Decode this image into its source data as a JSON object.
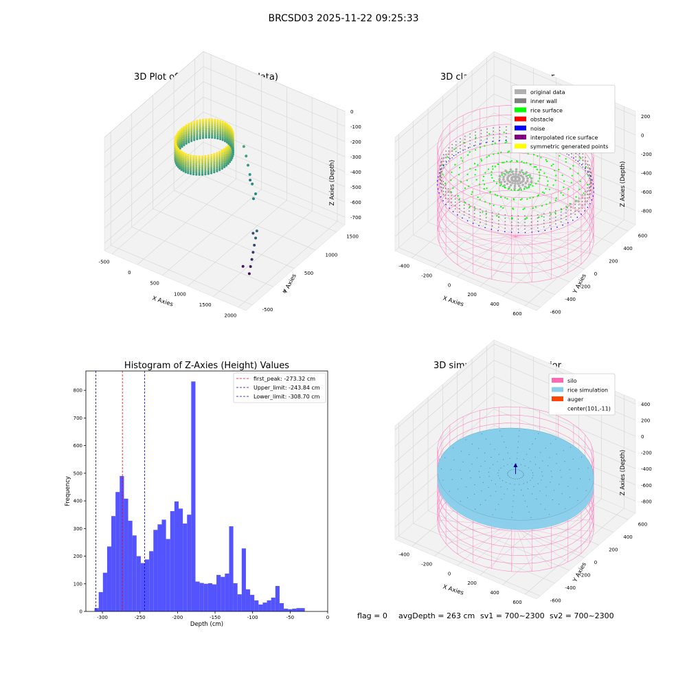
{
  "suptitle": "BRCSD03 2025-11-22 09:25:33",
  "footer": {
    "flag": "flag = 0",
    "avg_depth": "avgDepth = 263 cm",
    "sv1": "sv1 = 700~2300",
    "sv2": "sv2 = 700~2300"
  },
  "colors": {
    "raw_low": "#440154",
    "raw_mid": "#21918c",
    "raw_high": "#fde725",
    "original": "#b0b0b0",
    "inner_wall": "#808080",
    "rice_surface": "#00ff00",
    "obstacle": "#ff0000",
    "noise": "#0000ff",
    "interpolated": "#800080",
    "symmetric": "#ffff00",
    "silo": "#ff69b4",
    "rice_sim": "#87ceeb",
    "auger": "#ff4500",
    "hist": "#4b4bff",
    "peak_line": "#ff0000",
    "limit_line": "#0000cc"
  },
  "chart_data": [
    {
      "type": "scatter",
      "kind": "3d",
      "title": "3D Plot of Silo Interior(row data)",
      "xlabel": "X Axies",
      "ylabel": "Y Axies",
      "zlabel": "Z Axies (Depth)",
      "xticks": [
        "-500",
        "0",
        "500",
        "1000",
        "1500",
        "2000"
      ],
      "yticks": [
        "-500",
        "0",
        "500",
        "1000",
        "1500"
      ],
      "zticks": [
        "0",
        "-100",
        "-200",
        "-300",
        "-400",
        "-500",
        "-600",
        "-700"
      ],
      "xlim": [
        -650,
        2150
      ],
      "ylim": [
        -650,
        1700
      ],
      "zlim": [
        -750,
        0
      ],
      "ring": {
        "cx": 200,
        "cy": 700,
        "r": 440,
        "z_range": [
          -330,
          -210
        ]
      },
      "outliers": [
        {
          "x": 650,
          "y": 1100,
          "z": -300
        },
        {
          "x": 780,
          "y": 1000,
          "z": -320
        },
        {
          "x": 900,
          "y": 900,
          "z": -340
        },
        {
          "x": 1020,
          "y": 800,
          "z": -360
        },
        {
          "x": 1150,
          "y": 700,
          "z": -380
        },
        {
          "x": 900,
          "y": 950,
          "z": -450
        },
        {
          "x": 1300,
          "y": 600,
          "z": -400
        },
        {
          "x": 1300,
          "y": 550,
          "z": -420
        },
        {
          "x": 1700,
          "y": 150,
          "z": -480
        },
        {
          "x": 1700,
          "y": 120,
          "z": -520
        },
        {
          "x": 1700,
          "y": 90,
          "z": -560
        },
        {
          "x": 1700,
          "y": 60,
          "z": -600
        },
        {
          "x": 1700,
          "y": 30,
          "z": -640
        },
        {
          "x": 1700,
          "y": 0,
          "z": -680
        },
        {
          "x": 1700,
          "y": -30,
          "z": -720
        },
        {
          "x": 1500,
          "y": 300,
          "z": -560
        },
        {
          "x": 1550,
          "y": 0,
          "z": -700
        }
      ]
    },
    {
      "type": "scatter",
      "kind": "3d",
      "title": "3D classify of Silo Interior",
      "xlabel": "X Axies",
      "ylabel": "Y Axies",
      "zlabel": "Z Axies (Depth)",
      "xticks": [
        "-400",
        "-200",
        "0",
        "200",
        "400",
        "600"
      ],
      "yticks": [
        "-600",
        "-400",
        "-200",
        "0",
        "200",
        "400",
        "600"
      ],
      "zticks": [
        "200",
        "0",
        "-200",
        "-400",
        "-600",
        "-800"
      ],
      "xlim": [
        -550,
        700
      ],
      "ylim": [
        -650,
        700
      ],
      "zlim": [
        -950,
        250
      ],
      "legend_loc": "upper right",
      "legend": [
        {
          "label": "original data",
          "color_key": "original"
        },
        {
          "label": "inner wall",
          "color_key": "inner_wall"
        },
        {
          "label": "rice surface",
          "color_key": "rice_surface"
        },
        {
          "label": "obstacle",
          "color_key": "obstacle"
        },
        {
          "label": "noise",
          "color_key": "noise"
        },
        {
          "label": "interpolated rice surface",
          "color_key": "interpolated"
        },
        {
          "label": "symmetric generated points",
          "color_key": "symmetric"
        }
      ],
      "silo": {
        "cx": 101,
        "cy": -11,
        "r": 580,
        "z_top": 0,
        "z_bottom": -900
      },
      "surface_z": -270
    },
    {
      "type": "bar",
      "kind": "histogram",
      "title": "Histogram of Z-Axies (Height) Values",
      "xlabel": "Depth (cm)",
      "ylabel": "Frequency",
      "xticks": [
        "-300",
        "-250",
        "-200",
        "-150",
        "-100",
        "-50",
        "0"
      ],
      "yticks": [
        "0",
        "100",
        "200",
        "300",
        "400",
        "500",
        "600",
        "700",
        "800"
      ],
      "xlim": [
        -322,
        0
      ],
      "ylim": [
        0,
        870
      ],
      "bin_start": -310.5,
      "bin_width": 5.6,
      "values": [
        12,
        70,
        140,
        235,
        345,
        432,
        490,
        408,
        328,
        275,
        200,
        175,
        188,
        218,
        295,
        315,
        332,
        262,
        363,
        398,
        372,
        318,
        350,
        832,
        108,
        103,
        100,
        102,
        98,
        132,
        125,
        137,
        308,
        102,
        62,
        228,
        80,
        60,
        40,
        25,
        32,
        40,
        50,
        92,
        30,
        10,
        8,
        10,
        12,
        12
      ],
      "legend_loc": "upper right",
      "lines": [
        {
          "label": "first_peak: -273.32 cm",
          "x": -273.32,
          "color_key": "peak_line"
        },
        {
          "label": "Upper_limit: -243.84 cm",
          "x": -243.84,
          "color_key": "limit_line"
        },
        {
          "label": "Lower_limit: -308.70 cm",
          "x": -308.7,
          "color_key": "limit_line"
        }
      ]
    },
    {
      "type": "scatter",
      "kind": "3d",
      "title": "3D simulation of Silo Interior",
      "xlabel": "X Axies",
      "ylabel": "Y Axies",
      "zlabel": "Z Axies (Depth)",
      "xticks": [
        "-400",
        "-200",
        "0",
        "200",
        "400",
        "600"
      ],
      "yticks": [
        "-600",
        "-400",
        "-200",
        "0",
        "200",
        "400",
        "600"
      ],
      "zticks": [
        "400",
        "200",
        "0",
        "-200",
        "-400",
        "-600",
        "-800"
      ],
      "xlim": [
        -550,
        700
      ],
      "ylim": [
        -650,
        700
      ],
      "zlim": [
        -950,
        450
      ],
      "legend_loc": "upper right",
      "legend": [
        {
          "label": "silo",
          "color_key": "silo"
        },
        {
          "label": "rice simulation",
          "color_key": "rice_sim"
        },
        {
          "label": "auger",
          "color_key": "auger"
        },
        {
          "label": "center(101,-11)",
          "color_key": ""
        }
      ],
      "silo": {
        "cx": 101,
        "cy": -11,
        "r": 580,
        "z_top": 0,
        "z_bottom": -900
      },
      "rice_z": -263
    }
  ]
}
